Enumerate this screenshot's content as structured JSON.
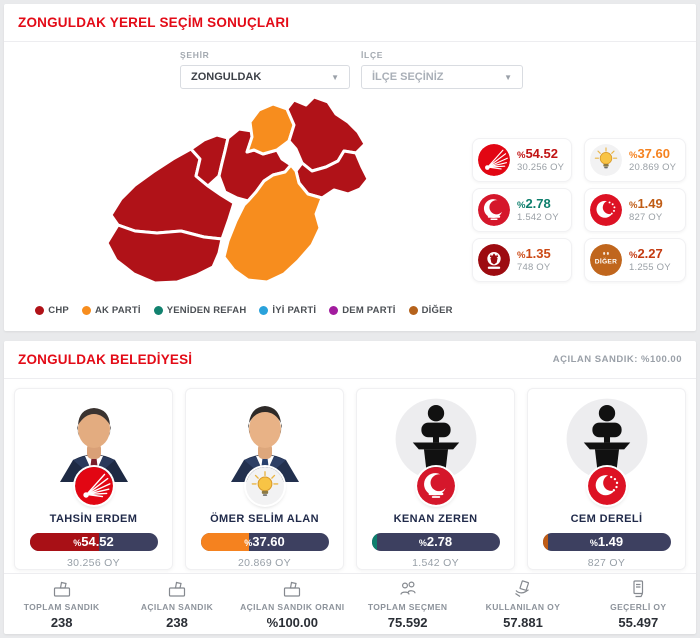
{
  "panel1": {
    "title": "ZONGULDAK YEREL SEÇİM SONUÇLARI",
    "filters": {
      "sehir_label": "ŞEHİR",
      "sehir_value": "ZONGULDAK",
      "ilce_label": "İLÇE",
      "ilce_placeholder": "İLÇE SEÇİNİZ"
    },
    "results": [
      {
        "party": "CHP",
        "sign": "%",
        "value": "54.52",
        "votes": "30.256 OY",
        "color": "#c11414"
      },
      {
        "party": "AK PARTİ",
        "sign": "%",
        "value": "37.60",
        "votes": "20.869 OY",
        "color": "#f5821f"
      },
      {
        "party": "YENİDEN REFAH",
        "sign": "%",
        "value": "2.78",
        "votes": "1.542 OY",
        "color": "#0e7f6d"
      },
      {
        "party": "SAADET",
        "sign": "%",
        "value": "1.49",
        "votes": "827 OY",
        "color": "#c05c15"
      },
      {
        "party": "ZAFER",
        "sign": "%",
        "value": "1.35",
        "votes": "748 OY",
        "color": "#cc4a16"
      },
      {
        "party": "DİĞER",
        "sign": "%",
        "value": "2.27",
        "votes": "1.255 OY",
        "color": "#c43b11"
      }
    ],
    "legend": [
      {
        "label": "CHP",
        "color": "#b01218"
      },
      {
        "label": "AK PARTİ",
        "color": "#f78d1e"
      },
      {
        "label": "YENİDEN REFAH",
        "color": "#12826f"
      },
      {
        "label": "İYİ PARTİ",
        "color": "#2aa2db"
      },
      {
        "label": "DEM PARTİ",
        "color": "#a21c9e"
      },
      {
        "label": "DİĞER",
        "color": "#b5621b"
      }
    ],
    "map": {
      "party_colors": {
        "CHP": "#b01218",
        "AK PARTİ": "#f78d1e"
      },
      "districts": [
        {
          "party": "CHP"
        },
        {
          "party": "CHP"
        },
        {
          "party": "CHP"
        },
        {
          "party": "CHP"
        },
        {
          "party": "AK PARTİ"
        },
        {
          "party": "CHP"
        },
        {
          "party": "CHP"
        },
        {
          "party": "AK PARTİ"
        }
      ]
    }
  },
  "panel2": {
    "title": "ZONGULDAK BELEDİYESİ",
    "opened_ballot_label": "AÇILAN SANDIK: %100.00",
    "candidates": [
      {
        "name": "TAHSİN ERDEM",
        "party": "CHP",
        "sign": "%",
        "value": "54.52",
        "percent_value": 54.52,
        "votes": "30.256 OY",
        "bar_color": "#a81016",
        "photo_type": "photo"
      },
      {
        "name": "ÖMER SELİM ALAN",
        "party": "AK PARTİ",
        "sign": "%",
        "value": "37.60",
        "percent_value": 37.6,
        "votes": "20.869 OY",
        "bar_color": "#f5821f",
        "photo_type": "photo"
      },
      {
        "name": "KENAN ZEREN",
        "party": "YENİDEN REFAH",
        "sign": "%",
        "value": "2.78",
        "percent_value": 2.78,
        "votes": "1.542 OY",
        "bar_color": "#0e7f6d",
        "photo_type": "silhouette"
      },
      {
        "name": "CEM DERELİ",
        "party": "SAADET",
        "sign": "%",
        "value": "1.49",
        "percent_value": 1.49,
        "votes": "827 OY",
        "bar_color": "#c05c15",
        "photo_type": "silhouette"
      }
    ],
    "stats": [
      {
        "label": "TOPLAM SANDIK",
        "value": "238",
        "icon": "ballot-box-icon"
      },
      {
        "label": "AÇILAN SANDIK",
        "value": "238",
        "icon": "ballot-box-icon"
      },
      {
        "label": "AÇILAN SANDIK ORANI",
        "value": "%100.00",
        "icon": "ballot-box-icon"
      },
      {
        "label": "TOPLAM SEÇMEN",
        "value": "75.592",
        "icon": "voters-icon"
      },
      {
        "label": "KULLANILAN OY",
        "value": "57.881",
        "icon": "cast-vote-icon"
      },
      {
        "label": "GEÇERLİ OY",
        "value": "55.497",
        "icon": "valid-vote-icon"
      }
    ]
  }
}
